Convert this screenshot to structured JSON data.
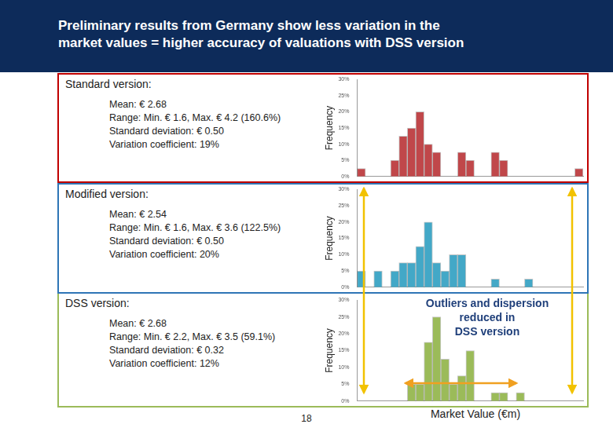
{
  "title": [
    "Preliminary results from Germany show less variation in the",
    "market values = higher accuracy of valuations with DSS version"
  ],
  "xlabel": "Market Value (€m)",
  "annotation": [
    "Outliers and dispersion",
    "reduced in",
    "DSS version"
  ],
  "page_number": "18",
  "chart_data": [
    {
      "type": "histogram",
      "title": "Standard version:",
      "annotations": [
        "Mean: € 2.68",
        "Range: Min. € 1.6, Max. € 4.2 (160.6%)",
        "Standard deviation: € 0.50",
        "Variation coefficient: 19%"
      ],
      "ylabel": "Frequency",
      "color": "#c0474a",
      "bins": [
        1.6,
        1.7,
        1.8,
        1.9,
        2.0,
        2.1,
        2.2,
        2.3,
        2.4,
        2.5,
        2.6,
        2.7,
        2.8,
        2.9,
        3.0,
        3.1,
        3.2,
        3.3,
        3.4,
        3.5,
        3.6,
        3.7,
        3.8,
        3.9,
        4.0,
        4.1,
        4.2,
        4.3
      ],
      "values": [
        2.5,
        0,
        0,
        0,
        5,
        12.5,
        15,
        20,
        10,
        7.5,
        0,
        0,
        7.5,
        5,
        0,
        0,
        7.5,
        5,
        0,
        0,
        0,
        0,
        0,
        0,
        0,
        0,
        2.5
      ],
      "xlim": [
        1.6,
        4.3
      ],
      "ylim": [
        0,
        30
      ],
      "yticks": [
        {
          "value": 0,
          "label": "0%"
        },
        {
          "value": 5,
          "label": "5%"
        },
        {
          "value": 10,
          "label": "10%"
        },
        {
          "value": 15,
          "label": "15%"
        },
        {
          "value": 20,
          "label": "20%"
        },
        {
          "value": 25,
          "label": "25%"
        },
        {
          "value": 30,
          "label": "30%"
        }
      ],
      "grid": false,
      "tick_labels": "y"
    },
    {
      "type": "histogram",
      "title": "Modified version:",
      "annotations": [
        "Mean: € 2.54",
        "Range: Min. € 1.6, Max. € 3.6 (122.5%)",
        "Standard deviation: € 0.50",
        "Variation coefficient: 20%"
      ],
      "ylabel": "Frequency",
      "color": "#43a8c7",
      "bins": [
        1.6,
        1.7,
        1.8,
        1.9,
        2.0,
        2.1,
        2.2,
        2.3,
        2.4,
        2.5,
        2.6,
        2.7,
        2.8,
        2.9,
        3.0,
        3.1,
        3.2,
        3.3,
        3.4,
        3.5,
        3.6,
        3.7,
        3.8,
        3.9,
        4.0,
        4.1,
        4.2,
        4.3
      ],
      "values": [
        5,
        0,
        5,
        0,
        5,
        7.5,
        7.5,
        12.5,
        20,
        7.5,
        5,
        10,
        10,
        0,
        0,
        0,
        2.5,
        0,
        0,
        0,
        2.5,
        0,
        0,
        0,
        0,
        0,
        0
      ],
      "xlim": [
        1.6,
        4.3
      ],
      "ylim": [
        0,
        30
      ],
      "yticks": [
        {
          "value": 0,
          "label": "0%"
        },
        {
          "value": 5,
          "label": "5%"
        },
        {
          "value": 10,
          "label": "10%"
        },
        {
          "value": 15,
          "label": "15%"
        },
        {
          "value": 20,
          "label": "20%"
        },
        {
          "value": 25,
          "label": "25%"
        },
        {
          "value": 30,
          "label": "30%"
        }
      ],
      "grid": false,
      "tick_labels": "y"
    },
    {
      "type": "histogram",
      "title": "DSS version:",
      "annotations": [
        "Mean: € 2.68",
        "Range: Min. € 2.2, Max. € 3.5 (59.1%)",
        "Standard deviation: € 0.32",
        "Variation coefficient: 12%"
      ],
      "ylabel": "Frequency",
      "color": "#9bbb59",
      "bins": [
        1.6,
        1.7,
        1.8,
        1.9,
        2.0,
        2.1,
        2.2,
        2.3,
        2.4,
        2.5,
        2.6,
        2.7,
        2.8,
        2.9,
        3.0,
        3.1,
        3.2,
        3.3,
        3.4,
        3.5,
        3.6,
        3.7,
        3.8,
        3.9,
        4.0,
        4.1,
        4.2,
        4.3
      ],
      "values": [
        0,
        0,
        0,
        0,
        0,
        0,
        5,
        5,
        17.5,
        25,
        12.5,
        5,
        7.5,
        15,
        0,
        0,
        2.5,
        2.5,
        0,
        2.5,
        0,
        0,
        0,
        0,
        0,
        0,
        0
      ],
      "xlim": [
        1.6,
        4.3
      ],
      "ylim": [
        0,
        30
      ],
      "yticks": [
        {
          "value": 0,
          "label": "0%"
        },
        {
          "value": 5,
          "label": "5%"
        },
        {
          "value": 10,
          "label": "10%"
        },
        {
          "value": 15,
          "label": "15%"
        },
        {
          "value": 20,
          "label": "20%"
        },
        {
          "value": 25,
          "label": "25%"
        },
        {
          "value": 30,
          "label": "30%"
        }
      ],
      "grid": false,
      "tick_labels": "y"
    }
  ]
}
